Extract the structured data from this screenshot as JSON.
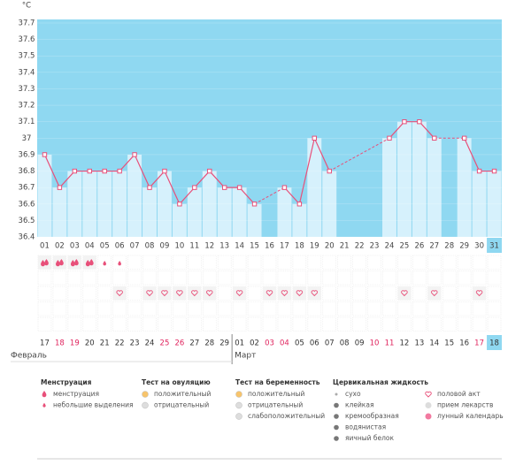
{
  "chart_data": {
    "type": "line",
    "unit": "°C",
    "categories": [
      "01",
      "02",
      "03",
      "04",
      "05",
      "06",
      "07",
      "08",
      "09",
      "10",
      "11",
      "12",
      "13",
      "14",
      "15",
      "16",
      "17",
      "18",
      "19",
      "20",
      "21",
      "22",
      "23",
      "24",
      "25",
      "26",
      "27",
      "28",
      "29",
      "30",
      "31"
    ],
    "values": [
      36.9,
      36.7,
      36.8,
      36.8,
      36.8,
      36.8,
      36.9,
      36.7,
      36.8,
      36.6,
      36.7,
      36.8,
      36.7,
      36.7,
      36.6,
      null,
      36.7,
      36.6,
      37.0,
      36.8,
      null,
      null,
      null,
      37.0,
      37.1,
      37.1,
      37.0,
      null,
      37.0,
      36.8,
      36.8
    ],
    "ylim": [
      36.4,
      37.7
    ],
    "yticks": [
      36.4,
      36.5,
      36.6,
      36.7,
      36.8,
      36.9,
      37,
      37.1,
      37.2,
      37.3,
      37.4,
      37.5,
      37.6,
      37.7
    ],
    "line_color": "#e8507a",
    "bar_color": "#d6f1fc",
    "background_color": "#8fd8f1",
    "dates": [
      {
        "label": "17",
        "color": "#333"
      },
      {
        "label": "18",
        "color": "#e0245e"
      },
      {
        "label": "19",
        "color": "#e0245e"
      },
      {
        "label": "20",
        "color": "#333"
      },
      {
        "label": "21",
        "color": "#333"
      },
      {
        "label": "22",
        "color": "#333"
      },
      {
        "label": "23",
        "color": "#333"
      },
      {
        "label": "24",
        "color": "#333"
      },
      {
        "label": "25",
        "color": "#e0245e"
      },
      {
        "label": "26",
        "color": "#e0245e"
      },
      {
        "label": "27",
        "color": "#333"
      },
      {
        "label": "28",
        "color": "#333"
      },
      {
        "label": "29",
        "color": "#333"
      },
      {
        "label": "01",
        "color": "#333"
      },
      {
        "label": "02",
        "color": "#333"
      },
      {
        "label": "03",
        "color": "#e0245e"
      },
      {
        "label": "04",
        "color": "#e0245e"
      },
      {
        "label": "05",
        "color": "#333"
      },
      {
        "label": "06",
        "color": "#333"
      },
      {
        "label": "07",
        "color": "#333"
      },
      {
        "label": "08",
        "color": "#333"
      },
      {
        "label": "09",
        "color": "#333"
      },
      {
        "label": "10",
        "color": "#e0245e"
      },
      {
        "label": "11",
        "color": "#e0245e"
      },
      {
        "label": "12",
        "color": "#333"
      },
      {
        "label": "13",
        "color": "#333"
      },
      {
        "label": "14",
        "color": "#333"
      },
      {
        "label": "15",
        "color": "#333"
      },
      {
        "label": "16",
        "color": "#333"
      },
      {
        "label": "17",
        "color": "#e0245e"
      },
      {
        "label": "18",
        "color": "#333"
      }
    ],
    "months": [
      "Февраль",
      "Март"
    ],
    "menstruation_days": [
      "01",
      "02",
      "03",
      "04"
    ],
    "spotting_days": [
      "05",
      "06"
    ],
    "intercourse_days": [
      "06",
      "08",
      "09",
      "10",
      "11",
      "12",
      "14",
      "16",
      "17",
      "18",
      "19",
      "25",
      "27",
      "30"
    ],
    "legend": [
      {
        "title": "Менструация",
        "items": [
          "менструация",
          "небольшие выделения"
        ]
      },
      {
        "title": "Тест на овуляцию",
        "items": [
          "положительный",
          "отрицательный"
        ]
      },
      {
        "title": "Тест на беременность",
        "items": [
          "положительный",
          "отрицательный",
          "слабоположительный"
        ]
      },
      {
        "title": "Цервикальная жидкость",
        "items": [
          "сухо",
          "клейкая",
          "кремообразная",
          "водянистая",
          "яичный белок"
        ]
      },
      {
        "items": [
          "половой акт",
          "прием лекарств",
          "лунный календарь"
        ]
      }
    ]
  }
}
